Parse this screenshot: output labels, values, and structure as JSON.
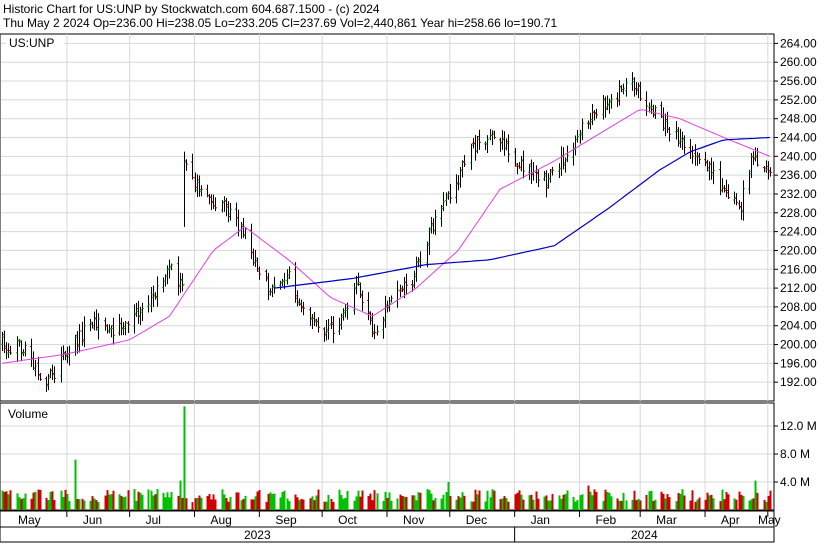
{
  "header": {
    "line1": "Historic Chart for US:UNP by Stockwatch.com 604.687.1500 - (c) 2024",
    "line2": "Thu May  2 2024   Op=236.00   Hi=238.05   Lo=233.205   Cl=237.69   Vol=2,440,861   Year hi=258.66   lo=190.71"
  },
  "colors": {
    "up": "#00c000",
    "down": "#d00000",
    "ma_short": "#e040e0",
    "ma_long": "#0000c0",
    "grid": "#d8d8d8"
  },
  "chart_data": {
    "type": "ohlc",
    "symbol_label": "US:UNP",
    "ylim": [
      188,
      266
    ],
    "yticks": [
      "192.00",
      "196.00",
      "200.00",
      "204.00",
      "208.00",
      "212.00",
      "216.00",
      "220.00",
      "224.00",
      "228.00",
      "232.00",
      "236.00",
      "240.00",
      "244.00",
      "248.00",
      "252.00",
      "256.00",
      "260.00",
      "264.00"
    ],
    "months": [
      "May",
      "Jun",
      "Jul",
      "Aug",
      "Sep",
      "Oct",
      "Nov",
      "Dec",
      "Jan",
      "Feb",
      "Mar",
      "Apr",
      "May"
    ],
    "years": [
      "2023",
      "2024"
    ],
    "price_anchors": [
      [
        "2023-05-01",
        200
      ],
      [
        "2023-05-12",
        199
      ],
      [
        "2023-05-22",
        192
      ],
      [
        "2023-06-01",
        198
      ],
      [
        "2023-06-12",
        205
      ],
      [
        "2023-06-23",
        202
      ],
      [
        "2023-07-03",
        206
      ],
      [
        "2023-07-14",
        211
      ],
      [
        "2023-07-21",
        216
      ],
      [
        "2023-07-26",
        212
      ],
      [
        "2023-07-27",
        238
      ],
      [
        "2023-08-03",
        232
      ],
      [
        "2023-08-14",
        230
      ],
      [
        "2023-08-24",
        224
      ],
      [
        "2023-09-05",
        212
      ],
      [
        "2023-09-15",
        214
      ],
      [
        "2023-09-22",
        208
      ],
      [
        "2023-10-03",
        202
      ],
      [
        "2023-10-10",
        206
      ],
      [
        "2023-10-17",
        213
      ],
      [
        "2023-10-26",
        202
      ],
      [
        "2023-11-03",
        210
      ],
      [
        "2023-11-13",
        214
      ],
      [
        "2023-11-22",
        224
      ],
      [
        "2023-12-01",
        232
      ],
      [
        "2023-12-12",
        242
      ],
      [
        "2023-12-21",
        245
      ],
      [
        "2024-01-03",
        238
      ],
      [
        "2024-01-16",
        234
      ],
      [
        "2024-01-25",
        240
      ],
      [
        "2024-02-05",
        248
      ],
      [
        "2024-02-16",
        252
      ],
      [
        "2024-02-26",
        256
      ],
      [
        "2024-03-06",
        250
      ],
      [
        "2024-03-15",
        246
      ],
      [
        "2024-03-25",
        242
      ],
      [
        "2024-04-03",
        238
      ],
      [
        "2024-04-11",
        232
      ],
      [
        "2024-04-18",
        230
      ],
      [
        "2024-04-24",
        240
      ],
      [
        "2024-04-29",
        236
      ],
      [
        "2024-05-02",
        237.69
      ]
    ],
    "moving_average_short": [
      [
        "2023-05-01",
        196
      ],
      [
        "2023-06-01",
        198
      ],
      [
        "2023-07-01",
        201
      ],
      [
        "2023-07-20",
        206
      ],
      [
        "2023-08-10",
        220
      ],
      [
        "2023-08-25",
        225
      ],
      [
        "2023-09-15",
        218
      ],
      [
        "2023-10-05",
        210
      ],
      [
        "2023-10-25",
        206
      ],
      [
        "2023-11-15",
        212
      ],
      [
        "2023-12-05",
        220
      ],
      [
        "2023-12-25",
        233
      ],
      [
        "2024-01-20",
        239
      ],
      [
        "2024-02-15",
        246
      ],
      [
        "2024-03-01",
        250
      ],
      [
        "2024-03-20",
        248
      ],
      [
        "2024-04-10",
        244
      ],
      [
        "2024-05-02",
        240
      ]
    ],
    "moving_average_long": [
      [
        "2023-09-08",
        212
      ],
      [
        "2023-10-15",
        214
      ],
      [
        "2023-11-20",
        217
      ],
      [
        "2023-12-20",
        218
      ],
      [
        "2024-01-20",
        221
      ],
      [
        "2024-02-15",
        229
      ],
      [
        "2024-03-10",
        237
      ],
      [
        "2024-03-25",
        241
      ],
      [
        "2024-04-10",
        243.5
      ],
      [
        "2024-05-02",
        244
      ]
    ],
    "spikes": [
      [
        "2023-07-27",
        241,
        225
      ]
    ],
    "volume": {
      "label": "Volume",
      "yticks": [
        "4.0 M",
        "8.0 M",
        "12.0 M"
      ],
      "ylim": [
        0,
        15
      ],
      "typical_millions": 2.5,
      "spikes": [
        [
          "2023-07-27",
          14.8
        ],
        [
          "2023-06-05",
          7.2
        ],
        [
          "2023-07-25",
          4.2
        ],
        [
          "2023-11-30",
          4.0
        ],
        [
          "2024-02-05",
          3.5
        ],
        [
          "2024-04-25",
          4.2
        ]
      ]
    }
  }
}
